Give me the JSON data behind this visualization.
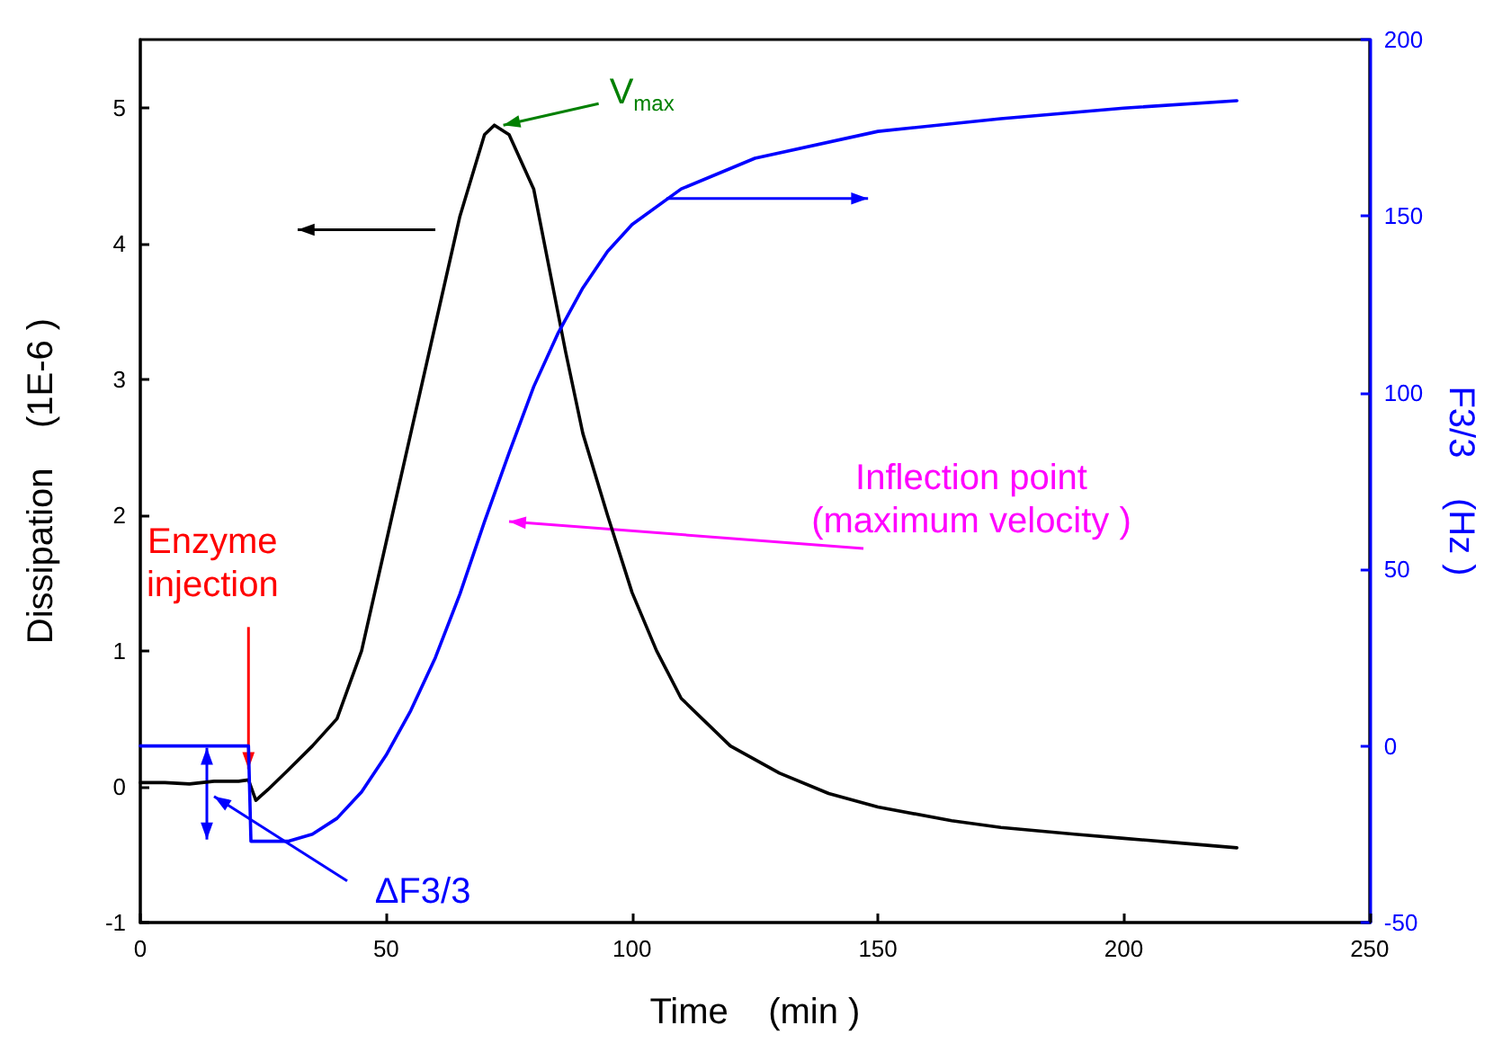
{
  "chart_data": {
    "type": "line",
    "xlabel": "Time    (min )",
    "ylabel": "Dissipation    (1E-6 )",
    "y2label": "F3/3    (Hz )",
    "xlim": [
      0,
      250
    ],
    "xticks": [
      0,
      50,
      100,
      150,
      200,
      250
    ],
    "ylim": [
      -1,
      5.5
    ],
    "yticks": [
      -1,
      0,
      1,
      2,
      3,
      4,
      5
    ],
    "y2lim": [
      -50,
      200
    ],
    "y2ticks": [
      -50,
      0,
      50,
      100,
      150,
      200
    ],
    "grid": false,
    "marker": "none",
    "line_style": "solid",
    "series": [
      {
        "color": "#000000",
        "x": [
          0,
          5,
          10,
          15,
          20,
          22,
          23.5,
          26,
          30,
          35,
          40,
          45,
          50,
          55,
          60,
          65,
          70,
          72,
          75,
          80,
          86.5,
          90,
          95,
          100,
          105,
          110,
          120,
          130,
          140,
          150,
          165,
          175,
          190,
          200,
          210,
          223
        ],
        "values": [
          0.03,
          0.03,
          0.02,
          0.04,
          0.04,
          0.05,
          -0.1,
          -0.02,
          0.12,
          0.3,
          0.5,
          1.0,
          1.8,
          2.6,
          3.4,
          4.2,
          4.8,
          4.87,
          4.8,
          4.4,
          3.2,
          2.6,
          2.0,
          1.43,
          1.0,
          0.65,
          0.3,
          0.1,
          -0.05,
          -0.15,
          -0.25,
          -0.3,
          -0.35,
          -0.38,
          -0.41,
          -0.45
        ]
      },
      {
        "color": "#0000ff",
        "axis": "y2",
        "x": [
          0,
          10,
          22,
          22.5,
          25,
          30,
          35,
          40,
          45,
          50,
          55,
          60,
          65,
          70,
          75,
          80,
          85,
          90,
          95,
          100,
          110,
          125,
          150,
          175,
          200,
          223
        ],
        "values": [
          0,
          0,
          0,
          -27,
          -27,
          -27,
          -25,
          -20.5,
          -13,
          -2.6,
          10,
          25,
          43,
          63.5,
          83,
          101.7,
          117,
          129.7,
          140,
          147.6,
          157.7,
          166.4,
          174,
          177.6,
          180.6,
          182.7
        ]
      }
    ],
    "annotations": [
      {
        "text": "Enzyme\ninjection",
        "x": 22,
        "y": 0.05
      },
      {
        "text": "V$_{max}$",
        "x": 72,
        "y": 4.87
      },
      "Inflection point\n(maximum velocity )",
      "ΔF3/3"
    ]
  }
}
